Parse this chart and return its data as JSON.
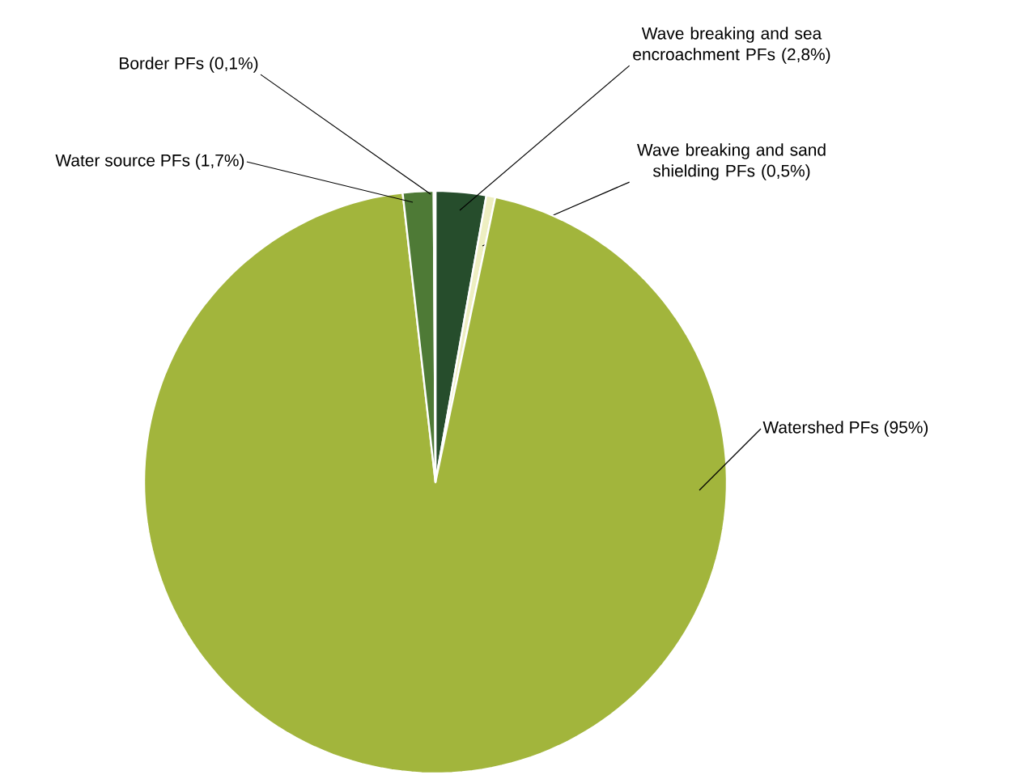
{
  "chart_data": {
    "type": "pie",
    "categories": [
      "Wave breaking and sea encroachment PFs (2,8%)",
      "Wave breaking and sand shielding PFs (0,5%)",
      "Watershed PFs (95%)",
      "Water source PFs (1,7%)",
      "Border PFs (0,1%)"
    ],
    "values": [
      2.8,
      0.5,
      95,
      1.7,
      0.1
    ],
    "colors": [
      "#264d2c",
      "#eeefc2",
      "#a2b53c",
      "#4e7a36",
      "#eeefc2"
    ]
  }
}
